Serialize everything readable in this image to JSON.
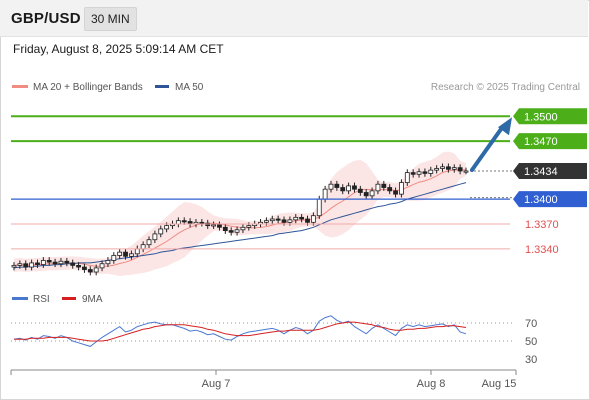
{
  "header": {
    "pair": "GBP/USD",
    "timeframe": "30 MIN"
  },
  "datetime": "Friday, August 8, 2025 5:09:14 AM CET",
  "legend": {
    "ma20_label": "MA 20 + Bollinger Bands",
    "ma50_label": "MA 50",
    "ma20_color": "#f28b82",
    "ma50_color": "#2f5597",
    "credit": "Research © 2025 Trading Central"
  },
  "levels": {
    "resistance_2": "1.3500",
    "resistance_1": "1.3470",
    "current": "1.3434",
    "pivot": "1.3400",
    "support_1": "1.3370",
    "support_2": "1.3340"
  },
  "colors": {
    "resistance": "#4caf1a",
    "pivot": "#2f5fd0",
    "support": "#e05050",
    "current_bg": "#333333",
    "arrow": "#2f6aa8"
  },
  "rsi_legend": {
    "rsi_label": "RSI",
    "ma_label": "9MA",
    "rsi_color": "#4a78d0",
    "ma_color": "#d62020"
  },
  "rsi_axis": [
    "70",
    "50",
    "30"
  ],
  "x_axis": [
    "Aug 7",
    "Aug 8",
    "Aug 15"
  ],
  "chart_data": {
    "type": "candlestick",
    "y_range": [
      1.3306,
      1.351
    ],
    "prices": [
      1.332,
      1.3322,
      1.3318,
      1.3323,
      1.3321,
      1.3326,
      1.3324,
      1.3322,
      1.3325,
      1.3323,
      1.332,
      1.3318,
      1.3315,
      1.3312,
      1.3317,
      1.3322,
      1.3326,
      1.3332,
      1.3336,
      1.3331,
      1.3334,
      1.334,
      1.3345,
      1.3351,
      1.3358,
      1.3364,
      1.3368,
      1.337,
      1.3374,
      1.3373,
      1.337,
      1.3372,
      1.3371,
      1.3368,
      1.3369,
      1.3366,
      1.3362,
      1.336,
      1.3363,
      1.3366,
      1.3368,
      1.337,
      1.3372,
      1.3374,
      1.3376,
      1.3375,
      1.3372,
      1.3375,
      1.3378,
      1.3376,
      1.3372,
      1.338,
      1.34,
      1.3412,
      1.3418,
      1.3414,
      1.341,
      1.3416,
      1.3412,
      1.3408,
      1.3404,
      1.341,
      1.3418,
      1.3414,
      1.341,
      1.3406,
      1.342,
      1.3432,
      1.343,
      1.3433,
      1.3431,
      1.3435,
      1.3437,
      1.3439,
      1.3436,
      1.3438,
      1.3434,
      1.3434
    ],
    "ma50": [
      1.3317,
      1.3318,
      1.3318,
      1.3319,
      1.3319,
      1.332,
      1.332,
      1.3321,
      1.3321,
      1.3322,
      1.3322,
      1.3323,
      1.3323,
      1.3323,
      1.3324,
      1.3325,
      1.3326,
      1.3327,
      1.3328,
      1.3329,
      1.333,
      1.3331,
      1.3332,
      1.3333,
      1.3334,
      1.3336,
      1.3337,
      1.3338,
      1.334,
      1.3341,
      1.3342,
      1.3343,
      1.3344,
      1.3345,
      1.3346,
      1.3347,
      1.3348,
      1.3349,
      1.335,
      1.3351,
      1.3352,
      1.3353,
      1.3354,
      1.3355,
      1.3356,
      1.3358,
      1.3359,
      1.336,
      1.3361,
      1.3362,
      1.3364,
      1.3366,
      1.3369,
      1.3372,
      1.3375,
      1.3377,
      1.3379,
      1.3381,
      1.3383,
      1.3385,
      1.3387,
      1.3389,
      1.3391,
      1.3392,
      1.3394,
      1.3395,
      1.3397,
      1.34,
      1.3402,
      1.3404,
      1.3406,
      1.3408,
      1.341,
      1.3412,
      1.3414,
      1.3416,
      1.3418,
      1.342
    ],
    "rsi": [
      52,
      53,
      51,
      54,
      52,
      56,
      55,
      53,
      56,
      54,
      50,
      48,
      46,
      44,
      49,
      54,
      58,
      62,
      66,
      60,
      62,
      66,
      68,
      70,
      71,
      69,
      68,
      68,
      66,
      64,
      61,
      62,
      60,
      57,
      58,
      55,
      52,
      51,
      55,
      58,
      60,
      61,
      62,
      63,
      64,
      62,
      58,
      62,
      65,
      63,
      58,
      62,
      72,
      76,
      78,
      73,
      70,
      72,
      66,
      62,
      58,
      64,
      68,
      64,
      60,
      56,
      64,
      68,
      66,
      68,
      66,
      67,
      68,
      69,
      66,
      68,
      60,
      58
    ],
    "rsi_ma": [
      52,
      52,
      52,
      53,
      53,
      53,
      54,
      54,
      54,
      54,
      53,
      52,
      51,
      50,
      50,
      50,
      51,
      53,
      55,
      57,
      59,
      61,
      63,
      64,
      66,
      67,
      68,
      68,
      68,
      68,
      67,
      66,
      65,
      63,
      62,
      60,
      58,
      57,
      56,
      56,
      56,
      57,
      58,
      59,
      60,
      61,
      61,
      62,
      62,
      62,
      62,
      62,
      63,
      65,
      67,
      69,
      70,
      71,
      71,
      70,
      69,
      68,
      66,
      65,
      63,
      62,
      62,
      63,
      63,
      64,
      64,
      65,
      66,
      66,
      67,
      67,
      66,
      65
    ]
  }
}
